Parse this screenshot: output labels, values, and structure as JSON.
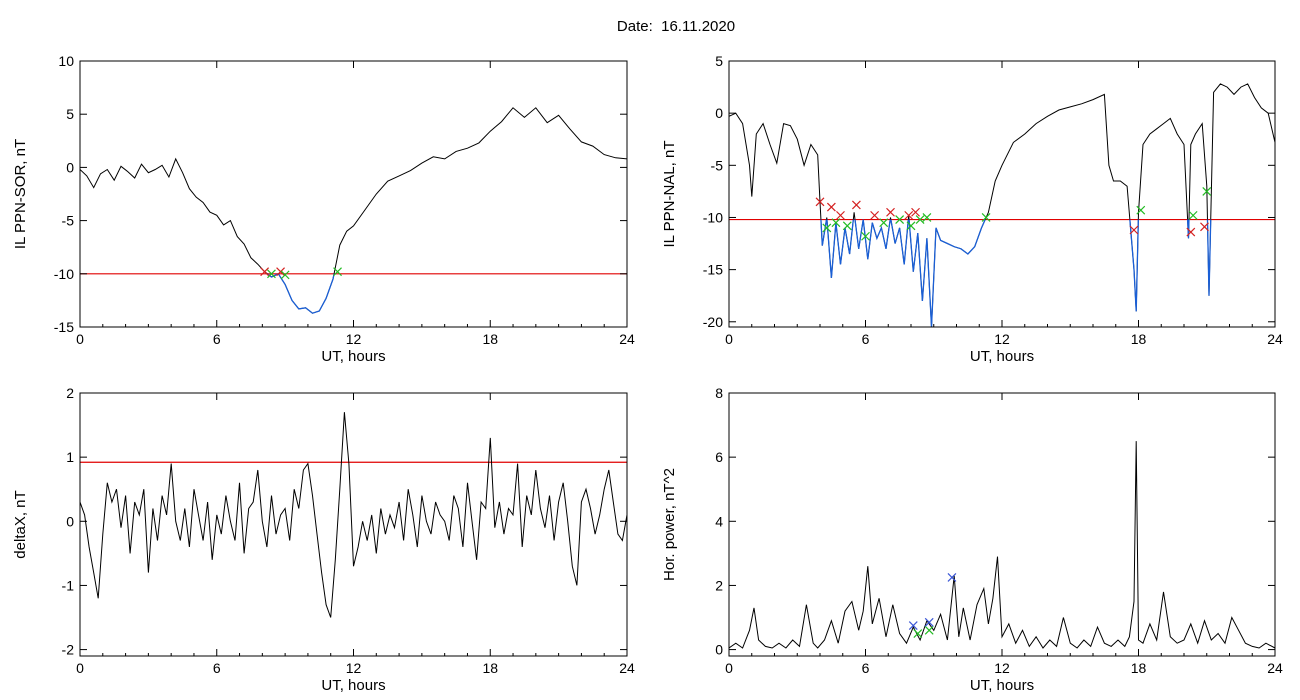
{
  "header": {
    "date_label": "Date:",
    "date_value": "16.11.2020"
  },
  "colors": {
    "trace": "#000000",
    "threshold": "#e00000",
    "below_threshold": "#1a5fd6",
    "marker_start": "#d42020",
    "marker_end": "#22bb22",
    "marker_blue": "#3a56d6"
  },
  "chart_data": [
    {
      "id": "ppn_sor",
      "type": "line",
      "xlabel": "UT, hours",
      "ylabel": "IL PPN-SOR, nT",
      "xlim": [
        0,
        24
      ],
      "ylim": [
        -15,
        10
      ],
      "xticks": [
        0,
        6,
        12,
        18,
        24
      ],
      "yticks": [
        10,
        5,
        0,
        -5,
        -10,
        -15
      ],
      "threshold": -10,
      "series": [
        {
          "x": [
            0,
            0.3,
            0.6,
            0.9,
            1.2,
            1.5,
            1.8,
            2.1,
            2.4,
            2.7,
            3.0,
            3.3,
            3.6,
            3.9,
            4.2,
            4.5,
            4.8,
            5.1,
            5.4,
            5.7,
            6.0,
            6.3,
            6.6,
            6.9,
            7.2,
            7.5,
            7.8,
            8.1,
            8.4,
            8.7,
            9.0,
            9.3,
            9.6,
            9.9,
            10.2,
            10.5,
            10.8,
            11.1,
            11.4,
            11.7,
            12.0,
            12.5,
            13.0,
            13.5,
            14.0,
            14.5,
            15.0,
            15.5,
            16.0,
            16.5,
            17.0,
            17.5,
            18.0,
            18.5,
            19.0,
            19.5,
            20.0,
            20.5,
            21.0,
            21.5,
            22.0,
            22.5,
            23.0,
            23.5,
            24.0
          ],
          "y": [
            -0.2,
            -0.8,
            -1.9,
            -0.6,
            -0.2,
            -1.2,
            0.1,
            -0.4,
            -1.0,
            0.3,
            -0.5,
            -0.2,
            0.2,
            -0.9,
            0.8,
            -0.5,
            -2.0,
            -2.8,
            -3.3,
            -4.2,
            -4.5,
            -5.4,
            -5.0,
            -6.5,
            -7.2,
            -8.5,
            -9.1,
            -9.8,
            -10.3,
            -10.0,
            -11.0,
            -12.5,
            -13.3,
            -13.2,
            -13.7,
            -13.5,
            -12.3,
            -10.5,
            -7.3,
            -6.0,
            -5.5,
            -4.0,
            -2.5,
            -1.3,
            -0.8,
            -0.3,
            0.4,
            1.0,
            0.8,
            1.5,
            1.8,
            2.3,
            3.4,
            4.3,
            5.6,
            4.7,
            5.6,
            4.2,
            4.9,
            3.6,
            2.4,
            2.0,
            1.2,
            0.9,
            0.8
          ]
        }
      ],
      "markers_start": [
        {
          "x": 8.1,
          "y": -9.8
        },
        {
          "x": 8.8,
          "y": -9.8
        }
      ],
      "markers_end": [
        {
          "x": 8.4,
          "y": -10.0
        },
        {
          "x": 9.0,
          "y": -10.1
        },
        {
          "x": 11.3,
          "y": -9.8
        }
      ],
      "markers_blue": []
    },
    {
      "id": "ppn_nal",
      "type": "line",
      "xlabel": "UT, hours",
      "ylabel": "IL PPN-NAL, nT",
      "xlim": [
        0,
        24
      ],
      "ylim": [
        -20.5,
        5
      ],
      "xticks": [
        0,
        6,
        12,
        18,
        24
      ],
      "yticks": [
        5,
        0,
        -5,
        -10,
        -15,
        -20
      ],
      "threshold": -10.2,
      "series": [
        {
          "x": [
            0,
            0.3,
            0.6,
            0.9,
            1.0,
            1.2,
            1.5,
            1.8,
            2.1,
            2.4,
            2.7,
            3.0,
            3.3,
            3.6,
            3.9,
            4.0,
            4.1,
            4.3,
            4.5,
            4.7,
            4.9,
            5.1,
            5.3,
            5.5,
            5.7,
            5.9,
            6.1,
            6.3,
            6.5,
            6.7,
            6.9,
            7.1,
            7.3,
            7.5,
            7.7,
            7.9,
            8.1,
            8.3,
            8.5,
            8.7,
            8.9,
            9.1,
            9.3,
            9.6,
            9.9,
            10.2,
            10.5,
            10.8,
            11.1,
            11.4,
            11.7,
            12.0,
            12.5,
            13.0,
            13.5,
            14.0,
            14.5,
            15.0,
            15.5,
            16.0,
            16.5,
            16.7,
            16.9,
            17.2,
            17.5,
            17.8,
            17.9,
            18.0,
            18.2,
            18.5,
            18.8,
            19.1,
            19.4,
            19.7,
            20.0,
            20.2,
            20.3,
            20.5,
            20.8,
            21.0,
            21.1,
            21.3,
            21.6,
            21.9,
            22.2,
            22.5,
            22.8,
            23.1,
            23.4,
            23.7,
            24.0
          ],
          "y": [
            -0.3,
            0.0,
            -1.0,
            -5.0,
            -8.0,
            -2.0,
            -1.0,
            -3.0,
            -4.8,
            -1.0,
            -1.2,
            -2.5,
            -5.0,
            -3.0,
            -4.0,
            -8.5,
            -12.7,
            -10.0,
            -15.8,
            -10.5,
            -14.5,
            -11.0,
            -13.5,
            -9.5,
            -13.0,
            -10.2,
            -14.0,
            -10.5,
            -12.0,
            -11.0,
            -13.0,
            -10.0,
            -12.5,
            -11.0,
            -14.5,
            -9.8,
            -15.2,
            -11.5,
            -18.0,
            -12.0,
            -20.5,
            -11.0,
            -12.2,
            -12.5,
            -12.8,
            -13.0,
            -13.5,
            -12.8,
            -11.0,
            -9.5,
            -6.5,
            -5.0,
            -2.8,
            -2.0,
            -1.0,
            -0.3,
            0.3,
            0.6,
            0.9,
            1.3,
            1.8,
            -5.0,
            -6.5,
            -6.5,
            -7.0,
            -15.0,
            -19.0,
            -9.5,
            -3.0,
            -2.0,
            -1.5,
            -1.0,
            -0.5,
            -2.0,
            -3.0,
            -12.0,
            -3.0,
            -2.0,
            -1.0,
            -7.0,
            -17.5,
            2.0,
            2.8,
            2.5,
            1.8,
            2.5,
            2.8,
            1.5,
            0.5,
            0.0,
            -2.8
          ]
        }
      ],
      "markers_start": [
        {
          "x": 4.0,
          "y": -8.5
        },
        {
          "x": 4.5,
          "y": -9.0
        },
        {
          "x": 4.9,
          "y": -9.8
        },
        {
          "x": 5.6,
          "y": -8.8
        },
        {
          "x": 6.4,
          "y": -9.8
        },
        {
          "x": 7.1,
          "y": -9.5
        },
        {
          "x": 7.9,
          "y": -9.8
        },
        {
          "x": 8.2,
          "y": -9.5
        },
        {
          "x": 17.8,
          "y": -11.2
        },
        {
          "x": 20.3,
          "y": -11.4
        },
        {
          "x": 20.9,
          "y": -10.9
        }
      ],
      "markers_end": [
        {
          "x": 4.3,
          "y": -11.0
        },
        {
          "x": 4.7,
          "y": -10.5
        },
        {
          "x": 5.2,
          "y": -10.8
        },
        {
          "x": 6.0,
          "y": -11.8
        },
        {
          "x": 6.8,
          "y": -10.5
        },
        {
          "x": 7.5,
          "y": -10.2
        },
        {
          "x": 8.0,
          "y": -10.8
        },
        {
          "x": 8.4,
          "y": -10.2
        },
        {
          "x": 8.7,
          "y": -10.0
        },
        {
          "x": 11.3,
          "y": -10.0
        },
        {
          "x": 18.1,
          "y": -9.3
        },
        {
          "x": 20.4,
          "y": -9.8
        },
        {
          "x": 21.0,
          "y": -7.5
        }
      ],
      "markers_blue": []
    },
    {
      "id": "deltax",
      "type": "line",
      "xlabel": "UT, hours",
      "ylabel": "deltaX, nT",
      "xlim": [
        0,
        24
      ],
      "ylim": [
        -2.1,
        2
      ],
      "xticks": [
        0,
        6,
        12,
        18,
        24
      ],
      "yticks": [
        2,
        1,
        0,
        -1,
        -2
      ],
      "threshold": 0.92,
      "series": [
        {
          "x": [
            0,
            0.2,
            0.4,
            0.6,
            0.8,
            1.0,
            1.2,
            1.4,
            1.6,
            1.8,
            2.0,
            2.2,
            2.4,
            2.6,
            2.8,
            3.0,
            3.2,
            3.4,
            3.6,
            3.8,
            4.0,
            4.2,
            4.4,
            4.6,
            4.8,
            5.0,
            5.2,
            5.4,
            5.6,
            5.8,
            6.0,
            6.2,
            6.4,
            6.6,
            6.8,
            7.0,
            7.2,
            7.4,
            7.6,
            7.8,
            8.0,
            8.2,
            8.4,
            8.6,
            8.8,
            9.0,
            9.2,
            9.4,
            9.6,
            9.8,
            10.0,
            10.2,
            10.4,
            10.6,
            10.8,
            11.0,
            11.2,
            11.4,
            11.6,
            11.8,
            12.0,
            12.2,
            12.4,
            12.6,
            12.8,
            13.0,
            13.2,
            13.4,
            13.6,
            13.8,
            14.0,
            14.2,
            14.4,
            14.6,
            14.8,
            15.0,
            15.2,
            15.4,
            15.6,
            15.8,
            16.0,
            16.2,
            16.4,
            16.6,
            16.8,
            17.0,
            17.2,
            17.4,
            17.6,
            17.8,
            18.0,
            18.2,
            18.4,
            18.6,
            18.8,
            19.0,
            19.2,
            19.4,
            19.6,
            19.8,
            20.0,
            20.2,
            20.4,
            20.6,
            20.8,
            21.0,
            21.2,
            21.4,
            21.6,
            21.8,
            22.0,
            22.2,
            22.4,
            22.6,
            22.8,
            23.0,
            23.2,
            23.4,
            23.6,
            23.8,
            24.0
          ],
          "y": [
            0.3,
            0.1,
            -0.4,
            -0.8,
            -1.2,
            -0.2,
            0.6,
            0.3,
            0.5,
            -0.1,
            0.4,
            -0.5,
            0.3,
            0.1,
            0.5,
            -0.8,
            0.2,
            -0.3,
            0.4,
            0.1,
            0.9,
            0.0,
            -0.3,
            0.2,
            -0.4,
            0.5,
            0.1,
            -0.3,
            0.3,
            -0.6,
            0.1,
            -0.2,
            0.4,
            0.0,
            -0.3,
            0.6,
            -0.5,
            0.2,
            0.3,
            0.8,
            0.0,
            -0.4,
            0.4,
            -0.2,
            0.1,
            0.2,
            -0.3,
            0.5,
            0.2,
            0.8,
            0.9,
            0.4,
            -0.2,
            -0.8,
            -1.3,
            -1.5,
            -0.6,
            0.5,
            1.7,
            0.9,
            -0.7,
            -0.4,
            0.0,
            -0.3,
            0.1,
            -0.5,
            0.2,
            -0.2,
            0.1,
            -0.1,
            0.3,
            -0.3,
            0.5,
            0.1,
            -0.4,
            0.4,
            0.0,
            -0.2,
            0.3,
            0.1,
            0.0,
            -0.3,
            0.4,
            0.2,
            -0.4,
            0.6,
            0.0,
            -0.6,
            0.3,
            0.2,
            1.3,
            -0.1,
            0.3,
            -0.2,
            0.2,
            0.1,
            0.9,
            -0.4,
            0.4,
            0.1,
            0.8,
            0.2,
            -0.1,
            0.4,
            -0.3,
            0.3,
            0.6,
            0.0,
            -0.7,
            -1.0,
            0.3,
            0.5,
            0.2,
            -0.2,
            0.1,
            0.5,
            0.8,
            0.3,
            -0.2,
            -0.3,
            0.1
          ]
        }
      ],
      "markers_start": [],
      "markers_end": [],
      "markers_blue": []
    },
    {
      "id": "hor_power",
      "type": "line",
      "xlabel": "UT, hours",
      "ylabel": "Hor. power, nT^2",
      "xlim": [
        0,
        24
      ],
      "ylim": [
        -0.2,
        8
      ],
      "xticks": [
        0,
        6,
        12,
        18,
        24
      ],
      "yticks": [
        8,
        6,
        4,
        2,
        0
      ],
      "threshold": null,
      "series": [
        {
          "x": [
            0,
            0.3,
            0.6,
            0.9,
            1.1,
            1.3,
            1.6,
            1.9,
            2.2,
            2.5,
            2.8,
            3.1,
            3.4,
            3.7,
            3.9,
            4.2,
            4.5,
            4.8,
            5.1,
            5.4,
            5.7,
            5.9,
            6.1,
            6.3,
            6.6,
            6.9,
            7.2,
            7.5,
            7.8,
            8.1,
            8.4,
            8.7,
            9.0,
            9.3,
            9.6,
            9.9,
            10.1,
            10.3,
            10.6,
            10.9,
            11.2,
            11.4,
            11.6,
            11.8,
            12.0,
            12.3,
            12.6,
            12.9,
            13.2,
            13.5,
            13.8,
            14.1,
            14.4,
            14.7,
            15.0,
            15.3,
            15.6,
            15.9,
            16.2,
            16.5,
            16.8,
            17.1,
            17.4,
            17.6,
            17.8,
            17.9,
            18.0,
            18.2,
            18.5,
            18.8,
            19.1,
            19.4,
            19.7,
            20.0,
            20.3,
            20.6,
            20.9,
            21.2,
            21.5,
            21.8,
            22.1,
            22.4,
            22.7,
            23.0,
            23.3,
            23.6,
            24.0
          ],
          "y": [
            0.05,
            0.2,
            0.05,
            0.6,
            1.3,
            0.3,
            0.1,
            0.05,
            0.2,
            0.05,
            0.3,
            0.1,
            1.4,
            0.2,
            0.05,
            0.3,
            0.9,
            0.2,
            1.2,
            1.5,
            0.6,
            1.2,
            2.6,
            0.8,
            1.6,
            0.4,
            1.4,
            0.5,
            0.2,
            0.7,
            0.3,
            0.9,
            0.6,
            1.1,
            0.3,
            2.3,
            0.4,
            1.3,
            0.3,
            1.4,
            1.9,
            0.8,
            1.6,
            2.9,
            0.4,
            0.8,
            0.2,
            0.6,
            0.1,
            0.4,
            0.05,
            0.3,
            0.1,
            1.0,
            0.2,
            0.05,
            0.3,
            0.1,
            0.7,
            0.2,
            0.1,
            0.3,
            0.1,
            0.4,
            1.5,
            6.5,
            0.3,
            0.2,
            0.8,
            0.3,
            1.8,
            0.4,
            0.2,
            0.3,
            0.8,
            0.2,
            0.9,
            0.3,
            0.5,
            0.2,
            1.0,
            0.6,
            0.2,
            0.1,
            0.05,
            0.2,
            0.05
          ]
        }
      ],
      "markers_start": [],
      "markers_end": [
        {
          "x": 8.3,
          "y": 0.5
        },
        {
          "x": 8.8,
          "y": 0.6
        }
      ],
      "markers_blue": [
        {
          "x": 8.1,
          "y": 0.75
        },
        {
          "x": 8.8,
          "y": 0.85
        },
        {
          "x": 9.8,
          "y": 2.25
        }
      ]
    }
  ]
}
